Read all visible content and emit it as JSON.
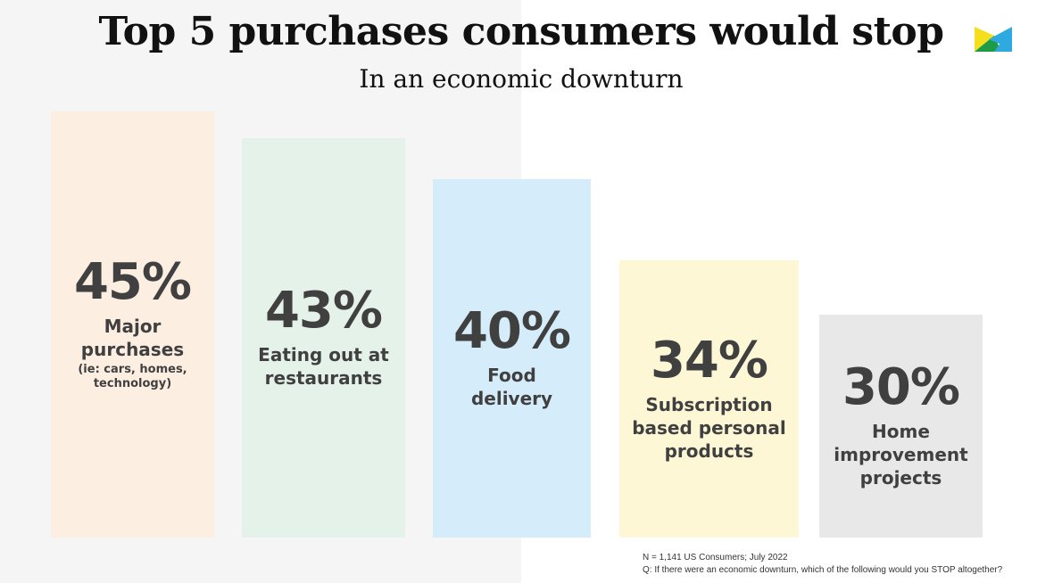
{
  "title": "Top 5 purchases consumers would stop",
  "subtitle": "In an economic downturn",
  "colors": {
    "bar_1": "#fdeee2",
    "bar_2": "#e5f2ea",
    "bar_3": "#d5edfb",
    "bar_4": "#fdf7d6",
    "bar_5": "#e8e8e8",
    "text": "#404040",
    "logo_yellow": "#f3df1e",
    "logo_green": "#1d9b45",
    "logo_blue": "#2eaae1"
  },
  "chart_data": {
    "type": "bar",
    "categories": [
      "Major purchases",
      "Eating out at restaurants",
      "Food delivery",
      "Subscription based personal products",
      "Home improvement projects"
    ],
    "values": [
      45,
      43,
      40,
      34,
      30
    ],
    "unit": "%",
    "value_labels": [
      "45%",
      "43%",
      "40%",
      "34%",
      "30%"
    ],
    "category_labels": [
      "Major\npurchases",
      "Eating out at\nrestaurants",
      "Food\ndelivery",
      "Subscription\nbased personal\nproducts",
      "Home\nimprovement\nprojects"
    ],
    "category_sublabels": [
      "(ie: cars, homes,\ntechnology)",
      "",
      "",
      "",
      ""
    ],
    "title": "Top 5 purchases consumers would stop",
    "subtitle": "In an economic downturn",
    "grid": false,
    "legend": "none"
  },
  "footnote": {
    "sample": "N = 1,141 US Consumers; July 2022",
    "question": "Q: If there were an economic downturn, which of the following would you STOP altogether?"
  },
  "logo": {
    "icon": "brand-logo-icon"
  }
}
